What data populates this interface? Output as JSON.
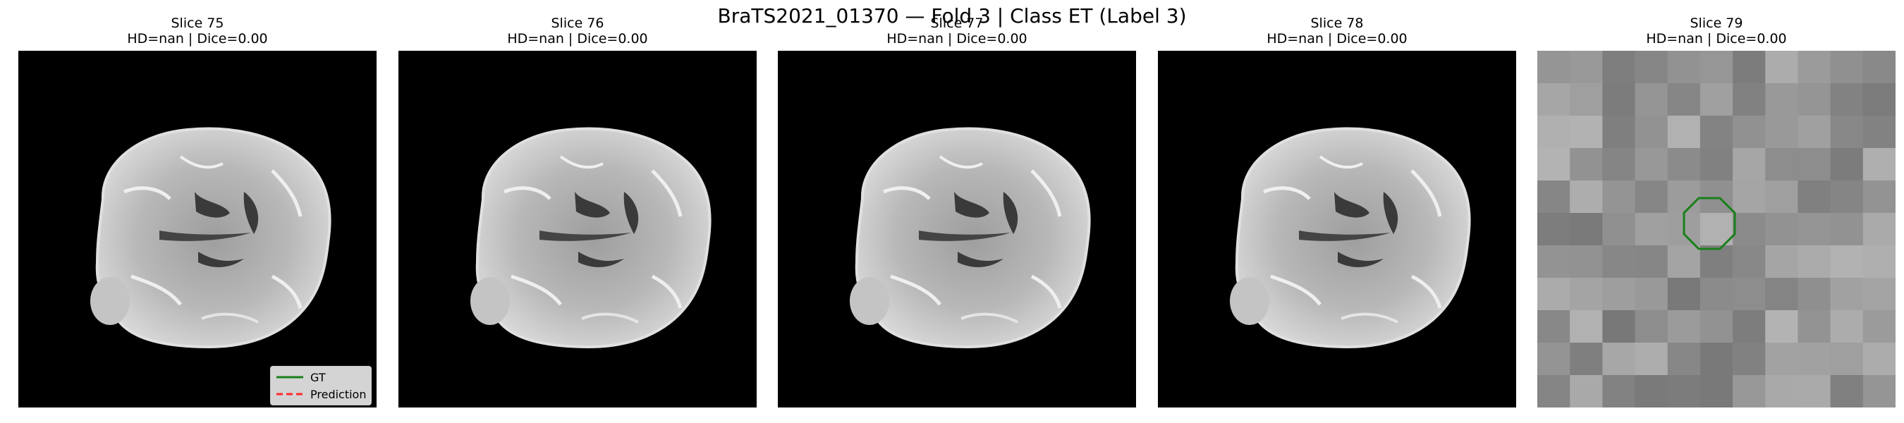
{
  "figure": {
    "title": "BraTS2021_01370 — Fold 3 | Class ET (Label 3)"
  },
  "panels": [
    {
      "title": "Slice 75",
      "metrics": "HD=nan | Dice=0.00",
      "view": "brain"
    },
    {
      "title": "Slice 76",
      "metrics": "HD=nan | Dice=0.00",
      "view": "brain"
    },
    {
      "title": "Slice 77",
      "metrics": "HD=nan | Dice=0.00",
      "view": "brain"
    },
    {
      "title": "Slice 78",
      "metrics": "HD=nan | Dice=0.00",
      "view": "brain"
    },
    {
      "title": "Slice 79",
      "metrics": "HD=nan | Dice=0.00",
      "view": "zoomed-pixels"
    }
  ],
  "legend": {
    "gt_label": "GT",
    "pred_label": "Prediction",
    "gt_color": "#1a7f1a",
    "pred_color": "#ff2a2a"
  },
  "colors": {
    "background": "#000000",
    "tissue": "#bdbdbd",
    "contour": "#1a7f1a"
  }
}
